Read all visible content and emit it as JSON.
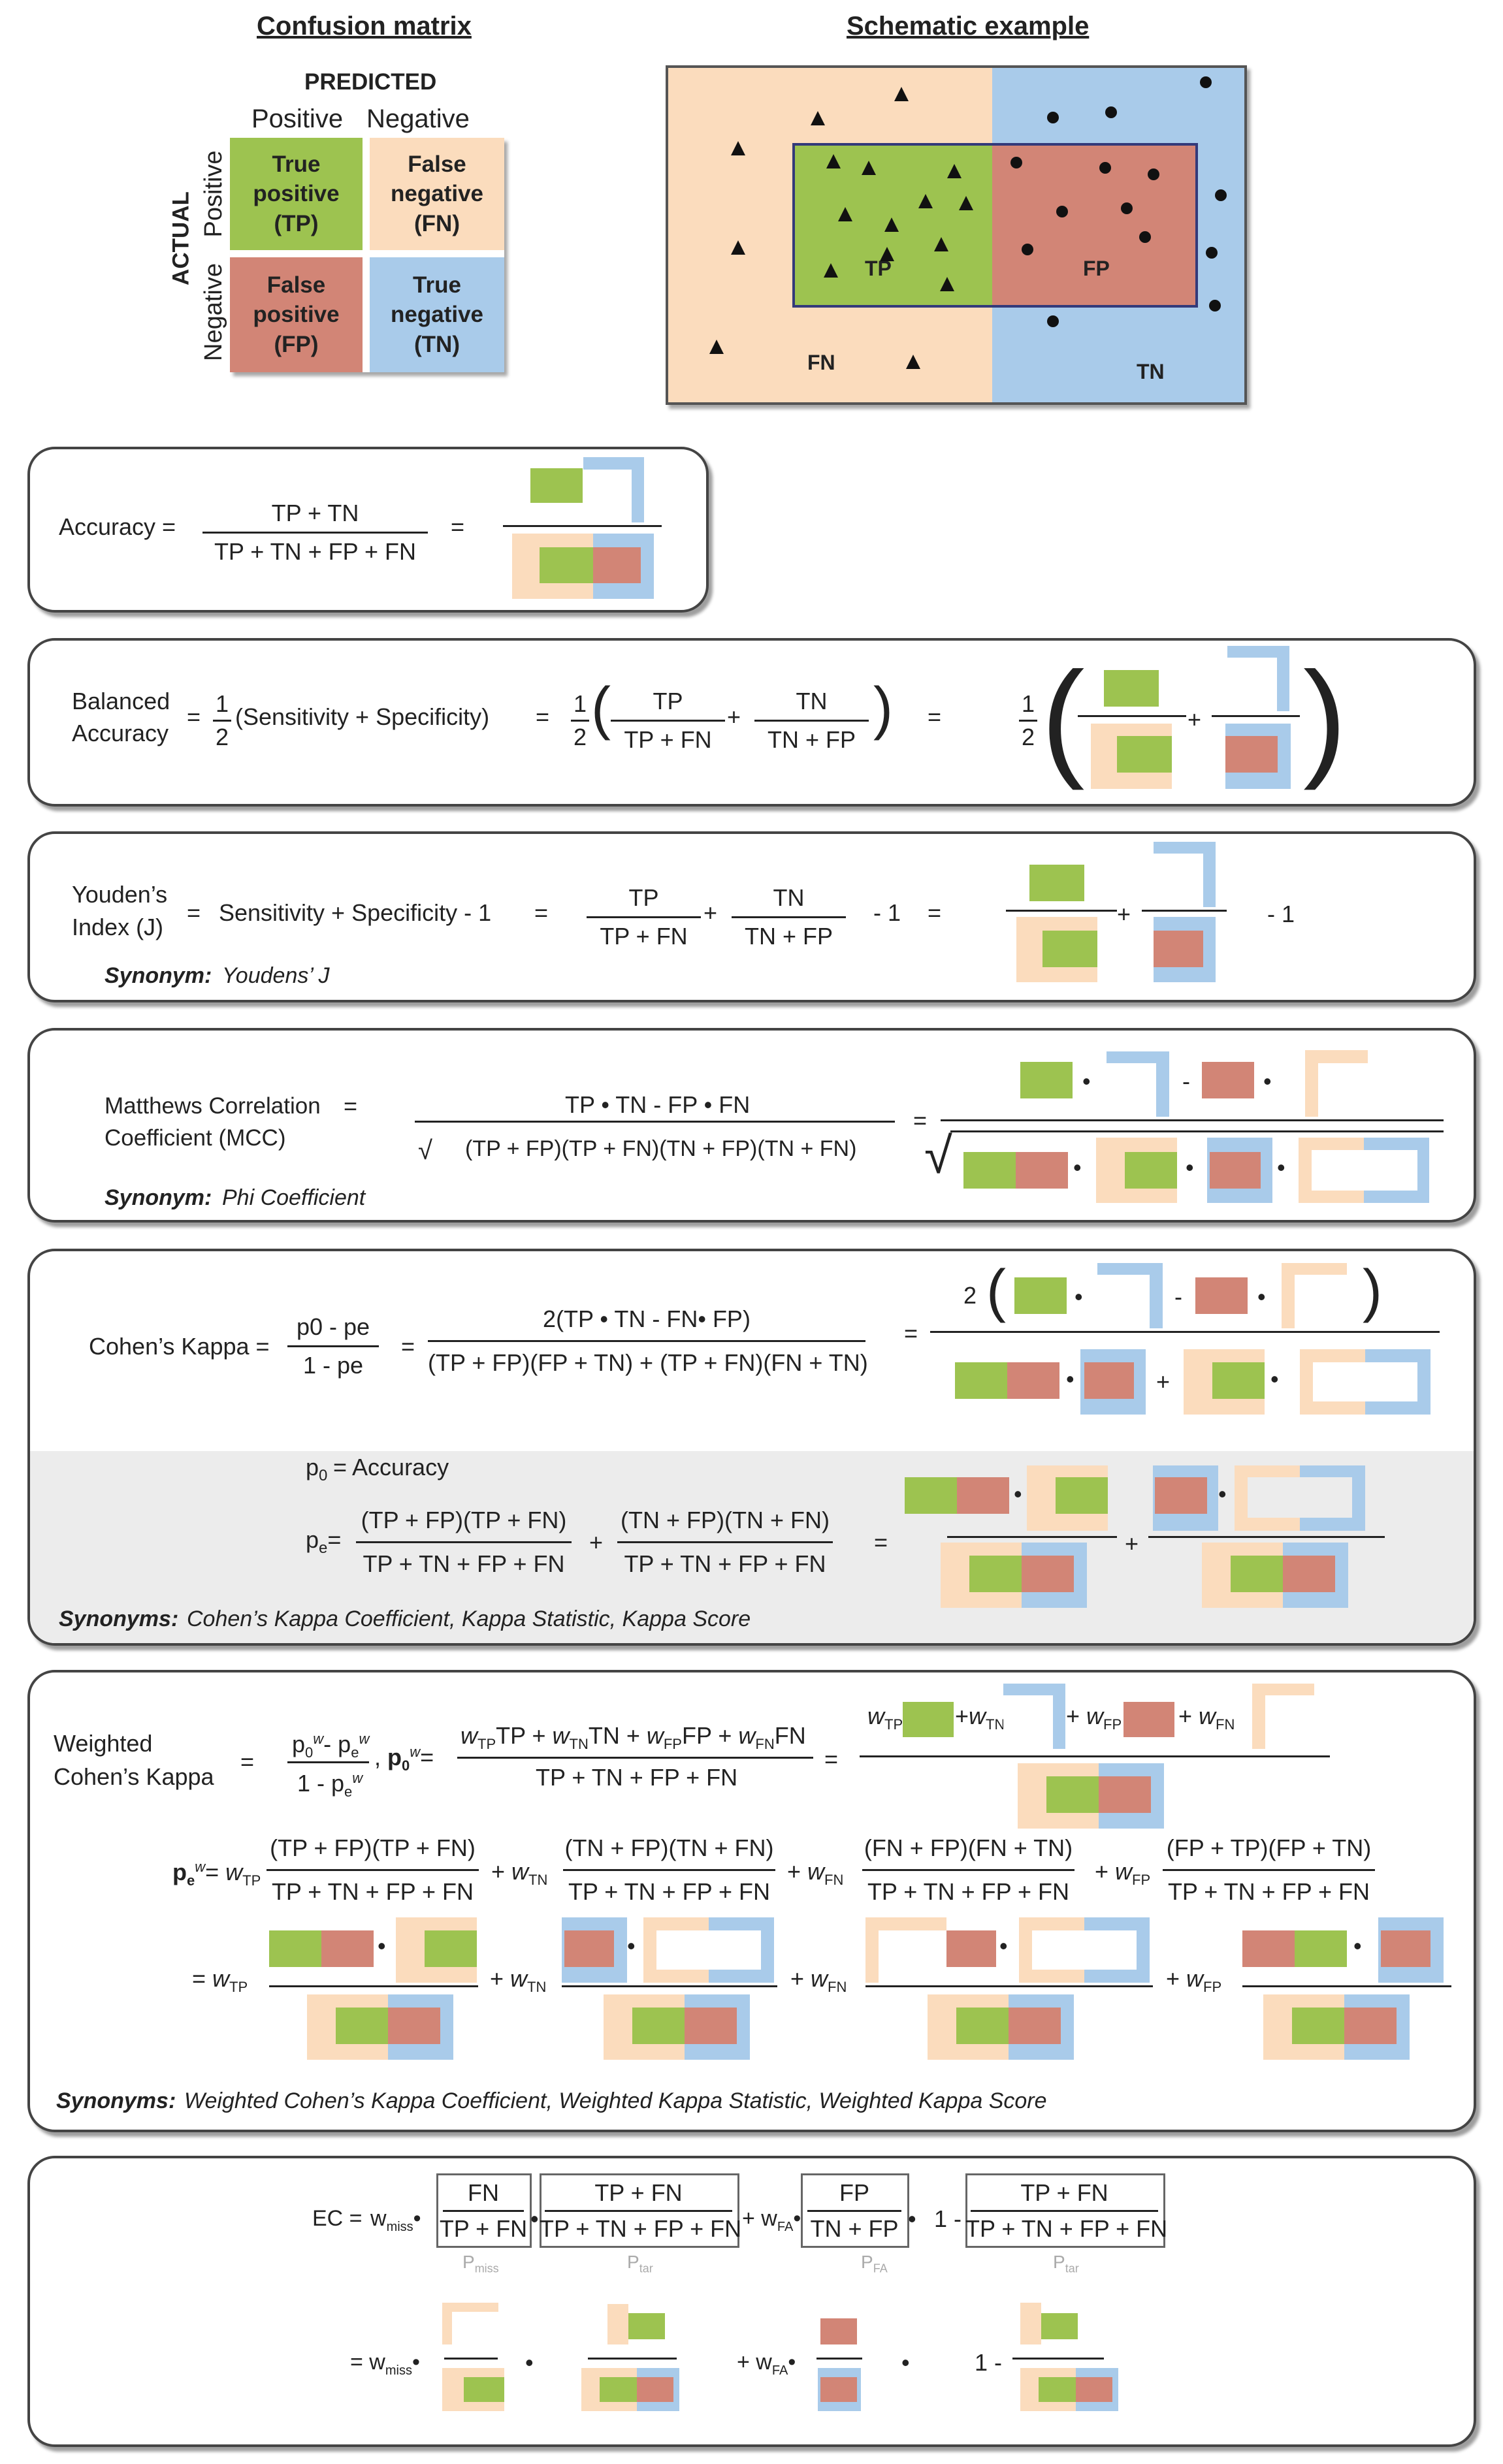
{
  "titles": {
    "confusion": "Confusion matrix",
    "schematic": "Schematic example"
  },
  "matrix": {
    "predicted": "PREDICTED",
    "actual": "ACTUAL",
    "pos": "Positive",
    "neg": "Negative",
    "tp": "True\npositive\n(TP)",
    "fn": "False\nnegative\n(FN)",
    "fp": "False\npositive\n(FP)",
    "tn": "True\nnegative\n(TN)"
  },
  "schem": {
    "tp": "TP",
    "fp": "FP",
    "fn": "FN",
    "tn": "TN"
  },
  "accuracy": {
    "label": "Accuracy =",
    "num": "TP + TN",
    "den": "TP + TN + FP + FN"
  },
  "balanced": {
    "l1": "Balanced",
    "l2": "Accuracy",
    "half_n": "1",
    "half_d": "2",
    "sens_spec": "(Sensitivity + Specificity)",
    "t1n": "TP",
    "t1d": "TP + FN",
    "t2n": "TN",
    "t2d": "TN + FP"
  },
  "youden": {
    "l1": "Youden’s",
    "l2": "Index (J)",
    "expr": "Sensitivity + Specificity - 1",
    "t1n": "TP",
    "t1d": "TP + FN",
    "t2n": "TN",
    "t2d": "TN + FP",
    "m1": "- 1",
    "syn_b": "Synonym:",
    "syn": "Youdens’ J"
  },
  "mcc": {
    "l1": "Matthews Correlation",
    "l2": "Coefficient (MCC)",
    "num": "TP • TN - FP • FN",
    "den": "(TP + FP)(TP + FN)(TN + FP)(TN + FN)",
    "syn_b": "Synonym:",
    "syn": "Phi Coefficient"
  },
  "kappa": {
    "label": "Cohen’s Kappa =",
    "p0pe": "p0 - pe",
    "one_pe": "1 - pe",
    "num": "2(TP • TN - FN• FP)",
    "den": "(TP + FP)(FP + TN) + (TP + FN)(FN + TN)",
    "two": "2",
    "p0_acc": "= Accuracy",
    "pe_t1n": "(TP + FP)(TP + FN)",
    "pe_t2n": "(TN + FP)(TN + FN)",
    "pe_den": "TP + TN + FP + FN",
    "syn_b": "Synonyms:",
    "syn": "Cohen’s Kappa Coefficient, Kappa Statistic, Kappa Score"
  },
  "wkappa": {
    "l1": "Weighted",
    "l2": "Cohen’s Kappa",
    "num": "TP + TN + FP + FN",
    "t1n": "(TP + FP)(TP + FN)",
    "t2n": "(TN + FP)(TN + FN)",
    "t3n": "(FN + FP)(FN + TN)",
    "t4n": "(FP + TP)(FP + TN)",
    "syn_b": "Synonyms:",
    "syn": "Weighted Cohen’s Kappa Coefficient, Weighted Kappa Statistic, Weighted Kappa Score"
  },
  "ec": {
    "label": "EC =",
    "f1n": "FN",
    "f1d": "TP + FN",
    "f2n": "TP + FN",
    "f2d": "TP + TN + FP + FN",
    "f3n": "FP",
    "f3d": "TN + FP",
    "f4n": "TP + FN",
    "f4d": "TP + TN + FP + FN",
    "one_minus": "1 -",
    "c_tar": "tar",
    "c_fa": "FA",
    "c_miss": "miss"
  },
  "colors": {
    "tp": "#9dc350",
    "fp": "#d28576",
    "fn": "#fbdcbd",
    "tn": "#a9cbea"
  }
}
